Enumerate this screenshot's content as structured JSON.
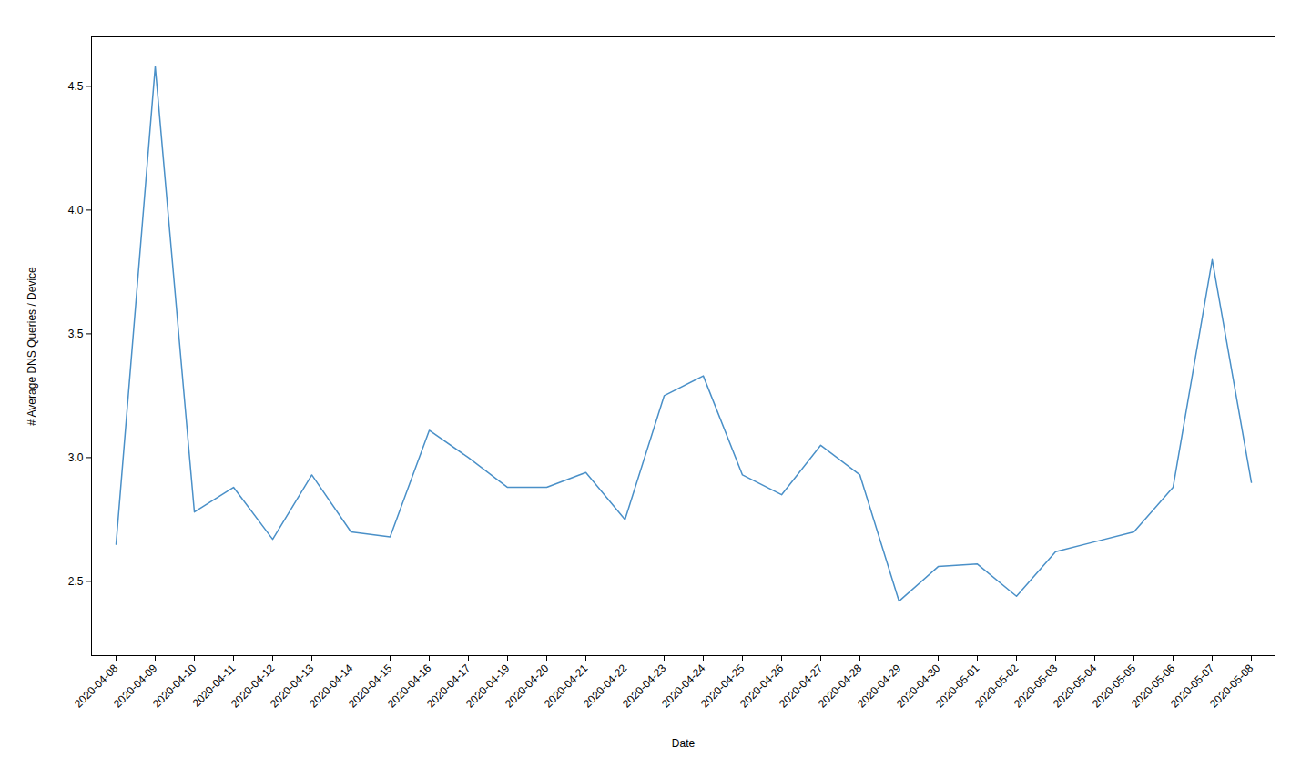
{
  "chart_data": {
    "type": "line",
    "xlabel": "Date",
    "ylabel": "# Average DNS Queries / Device",
    "categories": [
      "2020-04-08",
      "2020-04-09",
      "2020-04-10",
      "2020-04-11",
      "2020-04-12",
      "2020-04-13",
      "2020-04-14",
      "2020-04-15",
      "2020-04-16",
      "2020-04-17",
      "2020-04-19",
      "2020-04-20",
      "2020-04-21",
      "2020-04-22",
      "2020-04-23",
      "2020-04-24",
      "2020-04-25",
      "2020-04-26",
      "2020-04-27",
      "2020-04-28",
      "2020-04-29",
      "2020-04-30",
      "2020-05-01",
      "2020-05-02",
      "2020-05-03",
      "2020-05-04",
      "2020-05-05",
      "2020-05-06",
      "2020-05-07",
      "2020-05-08"
    ],
    "values": [
      2.65,
      4.58,
      2.78,
      2.88,
      2.67,
      2.93,
      2.7,
      2.68,
      3.11,
      3.0,
      2.88,
      2.88,
      2.94,
      2.75,
      3.25,
      3.33,
      2.93,
      2.85,
      3.05,
      2.93,
      2.42,
      2.56,
      2.57,
      2.44,
      2.62,
      2.66,
      2.7,
      2.88,
      3.8,
      2.9
    ],
    "color": "#4a90c8",
    "ylim": [
      2.2,
      4.7
    ],
    "yticks": [
      2.5,
      {
        "value": 3,
        "label": "3.0"
      },
      3.5,
      {
        "value": 4,
        "label": "4.0"
      },
      4.5
    ],
    "grid": false
  }
}
